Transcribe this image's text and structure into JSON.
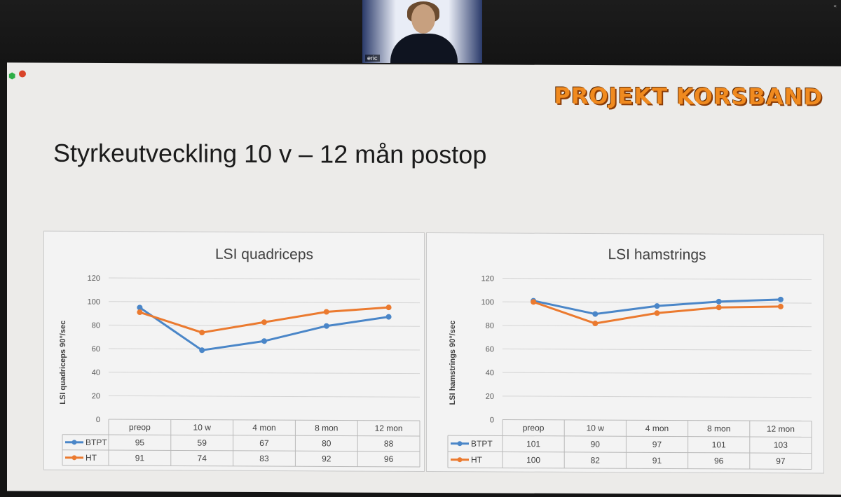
{
  "meeting": {
    "participant_name": "eric",
    "corner_mark": "«"
  },
  "slide": {
    "logo": "PROJEKT KORSBAND",
    "title": "Styrkeutveckling 10 v – 12 mån postop"
  },
  "colors": {
    "btpt": "#4a86c8",
    "ht": "#eb7a2f",
    "logo": "#f08a1f"
  },
  "chart_data": [
    {
      "type": "line",
      "title": "LSI quadriceps",
      "ylabel": "LSI quadriceps 90°/sec",
      "xlabel": "",
      "categories": [
        "preop",
        "10 w",
        "4 mon",
        "8 mon",
        "12 mon"
      ],
      "yticks": [
        0,
        20,
        40,
        60,
        80,
        100,
        120
      ],
      "ylim": [
        0,
        120
      ],
      "grid": true,
      "legend": "data-table",
      "series": [
        {
          "name": "BTPT",
          "values": [
            95,
            59,
            67,
            80,
            88
          ]
        },
        {
          "name": "HT",
          "values": [
            91,
            74,
            83,
            92,
            96
          ]
        }
      ]
    },
    {
      "type": "line",
      "title": "LSI hamstrings",
      "ylabel": "LSI hamstrings 90°/sec",
      "xlabel": "",
      "categories": [
        "preop",
        "10 w",
        "4 mon",
        "8 mon",
        "12 mon"
      ],
      "yticks": [
        0,
        20,
        40,
        60,
        80,
        100,
        120
      ],
      "ylim": [
        0,
        120
      ],
      "grid": true,
      "legend": "data-table",
      "series": [
        {
          "name": "BTPT",
          "values": [
            101,
            90,
            97,
            101,
            103
          ]
        },
        {
          "name": "HT",
          "values": [
            100,
            82,
            91,
            96,
            97
          ]
        }
      ]
    }
  ]
}
